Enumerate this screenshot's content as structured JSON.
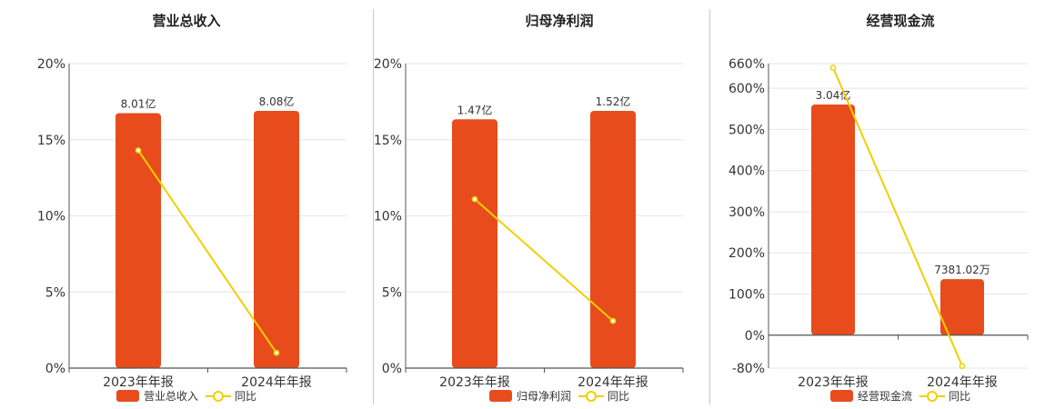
{
  "colors": {
    "bar": "#e84c1c",
    "line": "#f1cf00",
    "grid": "#e6e6e6",
    "axis": "#555555"
  },
  "legend": {
    "yoy_label": "同比"
  },
  "chart_data": [
    {
      "type": "bar",
      "title": "营业总收入",
      "legend_bar": "营业总收入",
      "categories": [
        "2023年年报",
        "2024年年报"
      ],
      "bar_values": [
        8.01,
        8.08
      ],
      "bar_labels": [
        "8.01亿",
        "8.08亿"
      ],
      "bar_unit": "亿",
      "yoy_values": [
        14.3,
        1.0
      ],
      "yoy_ticks": [
        "0%",
        "5%",
        "10%",
        "15%",
        "20%"
      ],
      "ylim": [
        0,
        20
      ]
    },
    {
      "type": "bar",
      "title": "归母净利润",
      "legend_bar": "归母净利润",
      "categories": [
        "2023年年报",
        "2024年年报"
      ],
      "bar_values": [
        1.47,
        1.52
      ],
      "bar_labels": [
        "1.47亿",
        "1.52亿"
      ],
      "bar_unit": "亿",
      "yoy_values": [
        11.1,
        3.1
      ],
      "yoy_ticks": [
        "0%",
        "5%",
        "10%",
        "15%",
        "20%"
      ],
      "ylim": [
        0,
        20
      ]
    },
    {
      "type": "bar",
      "title": "经营现金流",
      "legend_bar": "经营现金流",
      "categories": [
        "2023年年报",
        "2024年年报"
      ],
      "bar_values": [
        3.04,
        0.7381
      ],
      "bar_labels": [
        "3.04亿",
        "7381.02万"
      ],
      "bar_unit": "亿",
      "yoy_values": [
        650,
        -75
      ],
      "yoy_ticks": [
        "-80%",
        "0%",
        "100%",
        "200%",
        "300%",
        "400%",
        "500%",
        "600%",
        "660%"
      ],
      "yoy_tick_values": [
        -80,
        0,
        100,
        200,
        300,
        400,
        500,
        600,
        660
      ],
      "ylim": [
        -80,
        660
      ]
    }
  ]
}
